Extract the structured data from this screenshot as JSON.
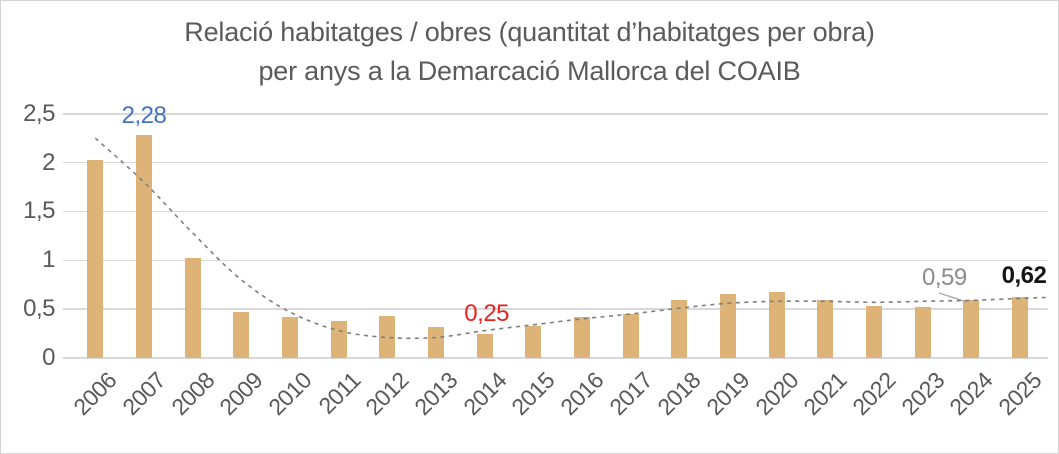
{
  "header": {
    "title_line1": "Relació habitatges / obres (quantitat d’habitatges per obra)",
    "title_line2": "per anys a la Demarcació Mallorca del COAIB"
  },
  "colors": {
    "bar": "#DDB377",
    "gridline": "#D9D9D9",
    "axis_text": "#595959",
    "title_text": "#5B5B5B",
    "trendline": "#7E7E7E",
    "leader_line": "#A6A6A6",
    "frame_border": "#D3D3D3",
    "label_blue": "#4472C4",
    "label_red": "#E8231D",
    "label_gray": "#8C8C8C",
    "label_black": "#151515"
  },
  "chart_data": {
    "type": "bar",
    "title": "Relació habitatges / obres (quantitat d’habitatges per obra) per anys a la Demarcació Mallorca del COAIB",
    "xlabel": "",
    "ylabel": "",
    "categories": [
      "2006",
      "2007",
      "2008",
      "2009",
      "2010",
      "2011",
      "2012",
      "2013",
      "2014",
      "2015",
      "2016",
      "2017",
      "2018",
      "2019",
      "2020",
      "2021",
      "2022",
      "2023",
      "2024",
      "2025"
    ],
    "values": [
      2.03,
      2.28,
      1.02,
      0.47,
      0.42,
      0.38,
      0.43,
      0.32,
      0.25,
      0.33,
      0.42,
      0.45,
      0.59,
      0.66,
      0.68,
      0.59,
      0.53,
      0.52,
      0.59,
      0.62
    ],
    "ylim": [
      0,
      2.5
    ],
    "y_tick_labels": [
      "2,5",
      "2",
      "1,5",
      "1",
      "0,5",
      "0"
    ],
    "y_tick_values": [
      2.5,
      2,
      1.5,
      1,
      0.5,
      0
    ],
    "grid": "horizontal",
    "legend": "none",
    "trendline": {
      "type": "polynomial",
      "style": "dashed",
      "values": [
        2.25,
        1.8,
        1.28,
        0.8,
        0.47,
        0.28,
        0.21,
        0.21,
        0.28,
        0.34,
        0.4,
        0.45,
        0.51,
        0.56,
        0.58,
        0.58,
        0.57,
        0.58,
        0.59,
        0.61
      ]
    },
    "data_labels": [
      {
        "category": "2007",
        "text": "2,28",
        "color_role": "label_blue",
        "bold": false,
        "leader": false
      },
      {
        "category": "2014",
        "text": "0,25",
        "color_role": "label_red",
        "bold": false,
        "leader": false
      },
      {
        "category": "2024",
        "text": "0,59",
        "color_role": "label_gray",
        "bold": false,
        "leader": true
      },
      {
        "category": "2025",
        "text": "0,62",
        "color_role": "label_black",
        "bold": true,
        "leader": false
      }
    ]
  }
}
